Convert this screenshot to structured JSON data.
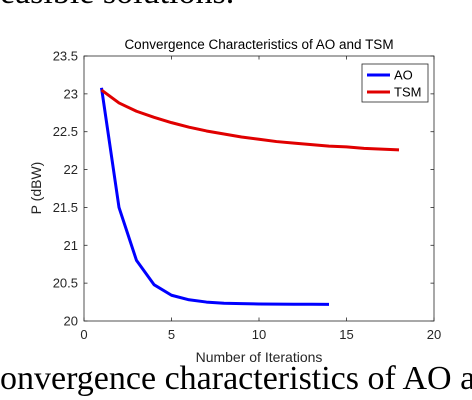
{
  "document": {
    "line_above": "easible solutions.",
    "line_below": "onvergence characteristics of AO a"
  },
  "chart_data": {
    "type": "line",
    "title": "Convergence Characteristics of AO and TSM",
    "xlabel": "Number of Iterations",
    "ylabel": "P (dBW)",
    "xlim": [
      0,
      20
    ],
    "ylim": [
      20,
      23.5
    ],
    "xticks": [
      0,
      5,
      10,
      15,
      20
    ],
    "yticks": [
      20,
      20.5,
      21,
      21.5,
      22,
      22.5,
      23,
      23.5
    ],
    "grid": false,
    "legend_position": "top-right",
    "series": [
      {
        "name": "AO",
        "color": "#0000ff",
        "x": [
          1,
          2,
          3,
          4,
          5,
          6,
          7,
          8,
          9,
          10,
          11,
          12,
          13,
          14
        ],
        "y": [
          23.08,
          21.5,
          20.8,
          20.48,
          20.34,
          20.28,
          20.25,
          20.235,
          20.23,
          20.225,
          20.223,
          20.222,
          20.221,
          20.22
        ]
      },
      {
        "name": "TSM",
        "color": "#e00000",
        "x": [
          1,
          2,
          3,
          4,
          5,
          6,
          7,
          8,
          9,
          10,
          11,
          12,
          13,
          14,
          15,
          16,
          17,
          18
        ],
        "y": [
          23.05,
          22.88,
          22.77,
          22.69,
          22.62,
          22.56,
          22.51,
          22.47,
          22.43,
          22.4,
          22.37,
          22.35,
          22.33,
          22.31,
          22.3,
          22.28,
          22.27,
          22.26
        ]
      }
    ]
  }
}
